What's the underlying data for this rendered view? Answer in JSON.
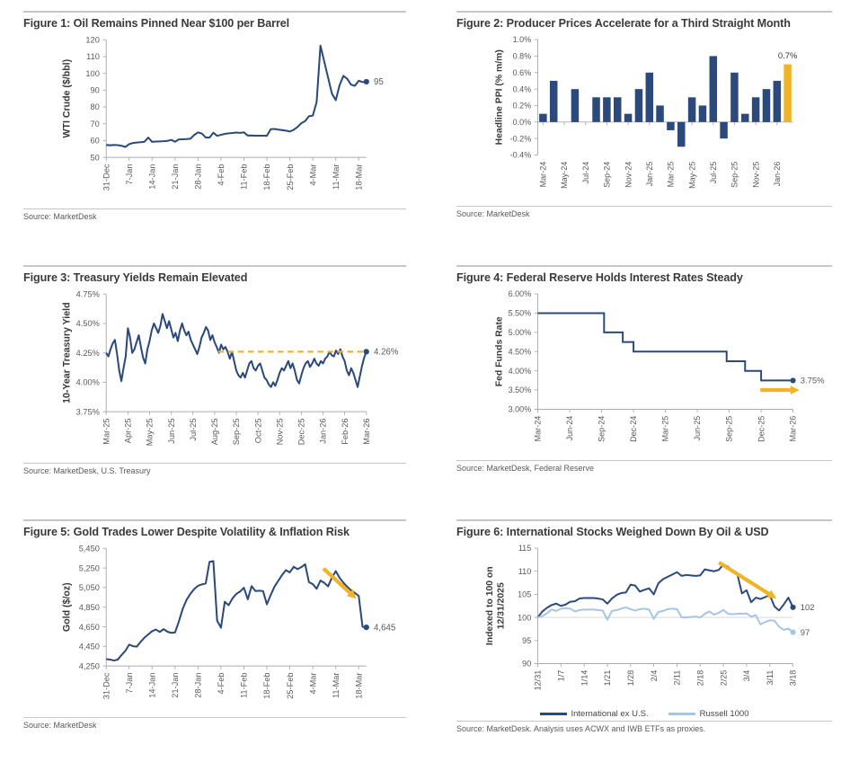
{
  "colors": {
    "navy": "#2B4A7B",
    "gold": "#EFB428",
    "light_blue": "#A6C5E8",
    "text": "#595959",
    "title": "#3A3A3A",
    "axis": "#ABABAB",
    "grid": "#D9D9D9"
  },
  "chart_data": [
    {
      "type": "line",
      "title": "Figure 1: Oil Remains Pinned Near $100 per Barrel",
      "source": "Source: MarketDesk",
      "ylabel": "WTI Crude ($/bbl)",
      "ylim": [
        50,
        120
      ],
      "yticks": [
        {
          "v": 120,
          "label": "120"
        },
        {
          "v": 110,
          "label": "110"
        },
        {
          "v": 100,
          "label": "100"
        },
        {
          "v": 90,
          "label": "90"
        },
        {
          "v": 80,
          "label": "80"
        },
        {
          "v": 70,
          "label": "70"
        },
        {
          "v": 60,
          "label": "60"
        },
        {
          "v": 50,
          "label": "50"
        }
      ],
      "xlabels": [
        "31-Dec",
        "7-Jan",
        "14-Jan",
        "21-Jan",
        "28-Jan",
        "4-Feb",
        "11-Feb",
        "18-Feb",
        "25-Feb",
        "4-Mar",
        "11-Mar",
        "18-Mar"
      ],
      "tick_every": 6,
      "values": [
        57.4,
        57.2,
        57.4,
        57.3,
        56.9,
        56.2,
        57.9,
        58.6,
        58.8,
        59.0,
        59.3,
        61.8,
        59.2,
        59.4,
        59.5,
        59.6,
        59.8,
        60.4,
        59.3,
        60.7,
        60.8,
        60.9,
        61.1,
        63.3,
        64.9,
        64.2,
        61.9,
        61.8,
        64.7,
        62.8,
        63.4,
        64.0,
        64.3,
        64.5,
        64.8,
        64.6,
        64.9,
        63.0,
        63.0,
        62.9,
        62.9,
        62.9,
        62.8,
        66.8,
        66.9,
        66.5,
        66.2,
        65.9,
        65.4,
        66.4,
        68.1,
        70.3,
        71.6,
        74.5,
        74.9,
        83.0,
        116.5,
        107.0,
        97.5,
        88.0,
        84.0,
        93.0,
        98.5,
        96.8,
        93.3,
        92.6,
        95.6,
        94.8,
        95.0
      ],
      "end_label": "95"
    },
    {
      "type": "bar",
      "title": "Figure 2: Producer Prices Accelerate for a Third Straight Month",
      "source": "Source: MarketDesk",
      "ylabel": "Headline PPI (% m/m)",
      "ylim": [
        -0.4,
        1.0
      ],
      "yticks": [
        {
          "v": 1.0,
          "label": "1.0%"
        },
        {
          "v": 0.8,
          "label": "0.8%"
        },
        {
          "v": 0.6,
          "label": "0.6%"
        },
        {
          "v": 0.4,
          "label": "0.4%"
        },
        {
          "v": 0.2,
          "label": "0.2%"
        },
        {
          "v": 0.0,
          "label": "0.0%"
        },
        {
          "v": -0.2,
          "label": "-0.2%"
        },
        {
          "v": -0.4,
          "label": "-0.4%"
        }
      ],
      "xlabels": [
        "Mar-24",
        "May-24",
        "Jul-24",
        "Sep-24",
        "Nov-24",
        "Jan-25",
        "Mar-25",
        "May-25",
        "Jul-25",
        "Sep-25",
        "Nov-25",
        "Jan-26"
      ],
      "values": [
        0.1,
        0.5,
        0.0,
        0.4,
        0.0,
        0.3,
        0.3,
        0.3,
        0.1,
        0.4,
        0.6,
        0.2,
        -0.1,
        -0.3,
        0.3,
        0.2,
        0.8,
        -0.2,
        0.6,
        0.1,
        0.3,
        0.4,
        0.5,
        0.7
      ],
      "highlight_index": 23,
      "highlight_label": "0.7%"
    },
    {
      "type": "line",
      "title": "Figure 3: Treasury Yields Remain Elevated",
      "source": "Source: MarketDesk, U.S. Treasury",
      "ylabel": "10-Year Treasury Yield",
      "ylim": [
        3.75,
        4.75
      ],
      "yticks": [
        {
          "v": 4.75,
          "label": "4.75%"
        },
        {
          "v": 4.5,
          "label": "4.50%"
        },
        {
          "v": 4.25,
          "label": "4.25%"
        },
        {
          "v": 4.0,
          "label": "4.00%"
        },
        {
          "v": 3.75,
          "label": "3.75%"
        }
      ],
      "xlabels": [
        "Mar-25",
        "Apr-25",
        "May-25",
        "Jun-25",
        "Jul-25",
        "Aug-25",
        "Sep-25",
        "Oct-25",
        "Nov-25",
        "Dec-25",
        "Jan-26",
        "Feb-26",
        "Mar-26"
      ],
      "tick_every": 10,
      "values": [
        4.25,
        4.22,
        4.28,
        4.33,
        4.36,
        4.24,
        4.1,
        4.01,
        4.12,
        4.22,
        4.46,
        4.38,
        4.25,
        4.28,
        4.34,
        4.4,
        4.3,
        4.21,
        4.16,
        4.28,
        4.35,
        4.44,
        4.5,
        4.46,
        4.42,
        4.48,
        4.58,
        4.52,
        4.46,
        4.52,
        4.45,
        4.38,
        4.42,
        4.35,
        4.44,
        4.5,
        4.44,
        4.4,
        4.43,
        4.36,
        4.32,
        4.28,
        4.24,
        4.3,
        4.38,
        4.42,
        4.47,
        4.44,
        4.36,
        4.4,
        4.34,
        4.3,
        4.25,
        4.32,
        4.28,
        4.3,
        4.26,
        4.2,
        4.26,
        4.18,
        4.1,
        4.06,
        4.04,
        4.08,
        4.04,
        4.1,
        4.16,
        4.18,
        4.12,
        4.1,
        4.14,
        4.16,
        4.1,
        4.04,
        4.02,
        3.98,
        3.96,
        4.0,
        3.97,
        4.02,
        4.08,
        4.12,
        4.1,
        4.14,
        4.18,
        4.12,
        4.16,
        4.1,
        4.02,
        3.99,
        4.06,
        4.12,
        4.16,
        4.18,
        4.13,
        4.16,
        4.2,
        4.16,
        4.14,
        4.18,
        4.16,
        4.2,
        4.22,
        4.26,
        4.23,
        4.22,
        4.27,
        4.24,
        4.28,
        4.22,
        4.18,
        4.1,
        4.06,
        4.12,
        4.08,
        4.02,
        3.96,
        4.05,
        4.14,
        4.21,
        4.26
      ],
      "dash_line": {
        "y": 4.26,
        "from": 0.43
      },
      "end_label": "4.26%"
    },
    {
      "type": "step",
      "title": "Figure 4: Federal Reserve Holds Interest Rates Steady",
      "source": "Source: MarketDesk, Federal Reserve",
      "ylabel": "Fed Funds Rate",
      "ylim": [
        3.0,
        6.0
      ],
      "yticks": [
        {
          "v": 6.0,
          "label": "6.00%"
        },
        {
          "v": 5.5,
          "label": "5.50%"
        },
        {
          "v": 5.0,
          "label": "5.00%"
        },
        {
          "v": 4.5,
          "label": "4.50%"
        },
        {
          "v": 4.0,
          "label": "4.00%"
        },
        {
          "v": 3.5,
          "label": "3.50%"
        },
        {
          "v": 3.0,
          "label": "3.00%"
        }
      ],
      "xlabels": [
        "Mar-24",
        "Jun-24",
        "Sep-24",
        "Dec-24",
        "Mar-25",
        "Jun-25",
        "Sep-25",
        "Dec-25",
        "Mar-26"
      ],
      "points": [
        [
          0,
          5.5
        ],
        [
          0.26,
          5.5
        ],
        [
          0.26,
          5.0
        ],
        [
          0.333,
          5.0
        ],
        [
          0.333,
          4.75
        ],
        [
          0.375,
          4.75
        ],
        [
          0.375,
          4.5
        ],
        [
          0.74,
          4.5
        ],
        [
          0.74,
          4.25
        ],
        [
          0.8125,
          4.25
        ],
        [
          0.8125,
          4.0
        ],
        [
          0.875,
          4.0
        ],
        [
          0.875,
          3.75
        ],
        [
          1,
          3.75
        ]
      ],
      "end_label": "3.75%",
      "arrow": {
        "x1": 0.872,
        "y1": 3.5,
        "x2": 1.025,
        "y2": 3.5
      }
    },
    {
      "type": "line",
      "title": "Figure 5: Gold Trades Lower Despite Volatility & Inflation Risk",
      "source": "Source: MarketDesk",
      "ylabel": "Gold ($/oz)",
      "ylim": [
        4250,
        5450
      ],
      "yticks": [
        {
          "v": 5450,
          "label": "5,450"
        },
        {
          "v": 5250,
          "label": "5,250"
        },
        {
          "v": 5050,
          "label": "5,050"
        },
        {
          "v": 4850,
          "label": "4,850"
        },
        {
          "v": 4650,
          "label": "4,650"
        },
        {
          "v": 4450,
          "label": "4,450"
        },
        {
          "v": 4250,
          "label": "4,250"
        }
      ],
      "xlabels": [
        "31-Dec",
        "7-Jan",
        "14-Jan",
        "21-Jan",
        "28-Jan",
        "4-Feb",
        "11-Feb",
        "18-Feb",
        "25-Feb",
        "4-Mar",
        "11-Mar",
        "18-Mar"
      ],
      "tick_every": 6,
      "values": [
        4320,
        4316,
        4306,
        4315,
        4362,
        4405,
        4468,
        4452,
        4448,
        4498,
        4540,
        4572,
        4605,
        4622,
        4597,
        4626,
        4600,
        4588,
        4592,
        4705,
        4835,
        4925,
        4985,
        5035,
        5068,
        5082,
        5092,
        5312,
        5320,
        4712,
        4640,
        4905,
        4870,
        4940,
        4985,
        5010,
        5048,
        4930,
        5065,
        5015,
        5018,
        5015,
        4880,
        4975,
        5060,
        5120,
        5180,
        5228,
        5205,
        5262,
        5238,
        5258,
        5288,
        5105,
        5085,
        5038,
        5122,
        5098,
        5062,
        5150,
        5218,
        5150,
        5100,
        5058,
        5022,
        4995,
        4965,
        4650,
        4645
      ],
      "end_label": "4,645",
      "arrow": {
        "x1": 0.835,
        "y1": 5245,
        "x2": 0.962,
        "y2": 4935
      }
    },
    {
      "type": "multiline",
      "title": "Figure 6: International Stocks Weighed Down By Oil & USD",
      "source": "Source: MarketDesk. Analysis uses ACWX and IWB ETFs as proxies.",
      "ylabel_lines": [
        "Indexed to 100 on",
        "12/31/2025"
      ],
      "ylim": [
        90,
        115
      ],
      "yticks": [
        {
          "v": 115,
          "label": "115"
        },
        {
          "v": 110,
          "label": "110"
        },
        {
          "v": 105,
          "label": "105"
        },
        {
          "v": 100,
          "label": "100"
        },
        {
          "v": 95,
          "label": "95"
        },
        {
          "v": 90,
          "label": "90"
        }
      ],
      "xlabels": [
        "12/31",
        "1/7",
        "1/14",
        "1/21",
        "1/28",
        "2/4",
        "2/11",
        "2/18",
        "2/25",
        "3/4",
        "3/11",
        "3/18"
      ],
      "tick_every": 5,
      "gridline_y": 100,
      "series": [
        {
          "name": "International ex U.S.",
          "color": "navy",
          "values": [
            100.0,
            101.3,
            102.1,
            102.7,
            103.0,
            102.5,
            102.8,
            103.4,
            103.5,
            104.1,
            104.2,
            104.2,
            104.2,
            104.1,
            103.9,
            103.0,
            104.1,
            104.9,
            105.3,
            105.4,
            107.1,
            106.9,
            105.6,
            106.0,
            106.3,
            105.0,
            107.4,
            108.3,
            108.8,
            109.3,
            109.8,
            109.0,
            109.2,
            109.1,
            109.0,
            109.1,
            110.4,
            110.2,
            110.0,
            110.3,
            111.5,
            111.0,
            110.1,
            109.4,
            105.2,
            105.9,
            103.3,
            104.3,
            104.0,
            104.4,
            104.8,
            102.4,
            101.5,
            102.8,
            104.3,
            102.2
          ],
          "end_label": "102"
        },
        {
          "name": "Russell 1000",
          "color": "light_blue",
          "values": [
            100.0,
            100.3,
            100.9,
            101.7,
            101.4,
            101.9,
            102.0,
            101.9,
            101.3,
            101.6,
            101.7,
            101.7,
            101.7,
            101.6,
            101.5,
            99.5,
            101.4,
            101.6,
            101.9,
            102.2,
            101.8,
            101.5,
            101.8,
            101.9,
            101.7,
            99.7,
            101.2,
            101.4,
            101.8,
            101.9,
            101.8,
            100.0,
            100.0,
            100.1,
            100.2,
            100.0,
            100.8,
            101.3,
            100.6,
            101.0,
            101.6,
            100.8,
            100.7,
            100.8,
            100.8,
            100.9,
            100.2,
            100.5,
            98.5,
            99.0,
            99.4,
            99.3,
            98.0,
            97.3,
            97.6,
            96.8
          ],
          "end_label": "97"
        }
      ],
      "arrow": {
        "x1": 0.71,
        "y1": 111.9,
        "x2": 0.935,
        "y2": 104.1
      }
    }
  ]
}
